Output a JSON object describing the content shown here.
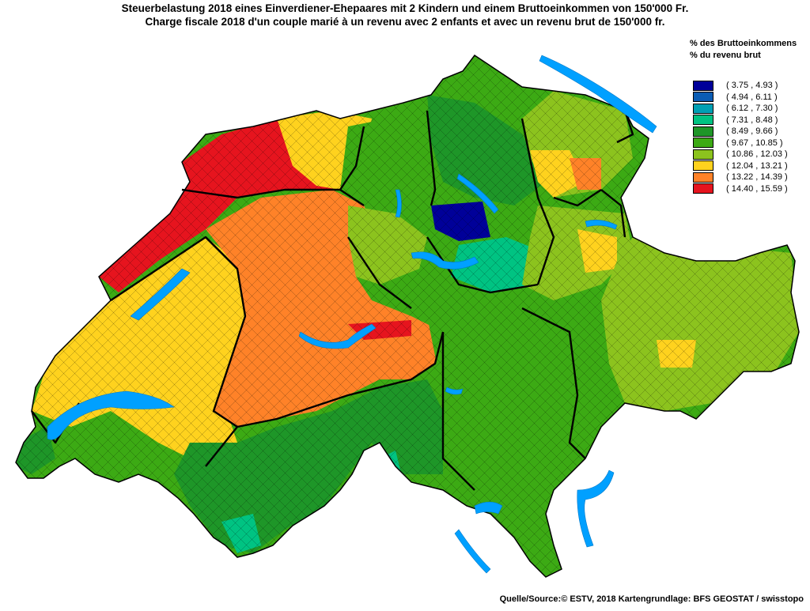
{
  "title": {
    "line1": "Steuerbelastung 2018 eines Einverdiener-Ehepaares mit 2 Kindern und einem Bruttoeinkommen von 150'000 Fr.",
    "line2": "Charge fiscale 2018 d'un couple marié à un revenu avec 2 enfants et avec un revenu brut de 150'000 fr."
  },
  "legend": {
    "title_de": "% des Bruttoeinkommens",
    "title_fr": "% du revenu brut",
    "items": [
      {
        "label": "( 3.75 , 4.93 )",
        "color": "#000099"
      },
      {
        "label": "( 4.94 , 6.11 )",
        "color": "#0a5cb4"
      },
      {
        "label": "( 6.12 , 7.30 )",
        "color": "#00a0b4"
      },
      {
        "label": "( 7.31 , 8.48 )",
        "color": "#00c382"
      },
      {
        "label": "( 8.49 , 9.66 )",
        "color": "#1e9628"
      },
      {
        "label": "( 9.67 , 10.85 )",
        "color": "#3caa14"
      },
      {
        "label": "( 10.86 , 12.03 )",
        "color": "#8cc31e"
      },
      {
        "label": "( 12.04 , 13.21 )",
        "color": "#ffd21e"
      },
      {
        "label": "( 13.22 , 14.39 )",
        "color": "#ff8228"
      },
      {
        "label": "( 14.40 , 15.59 )",
        "color": "#e6141e"
      }
    ]
  },
  "source": "Quelle/Source:© ESTV, 2018 Kartengrundlage: BFS GEOSTAT / swisstopo",
  "colors": {
    "lake": "#00a0ff",
    "border": "#000000"
  }
}
